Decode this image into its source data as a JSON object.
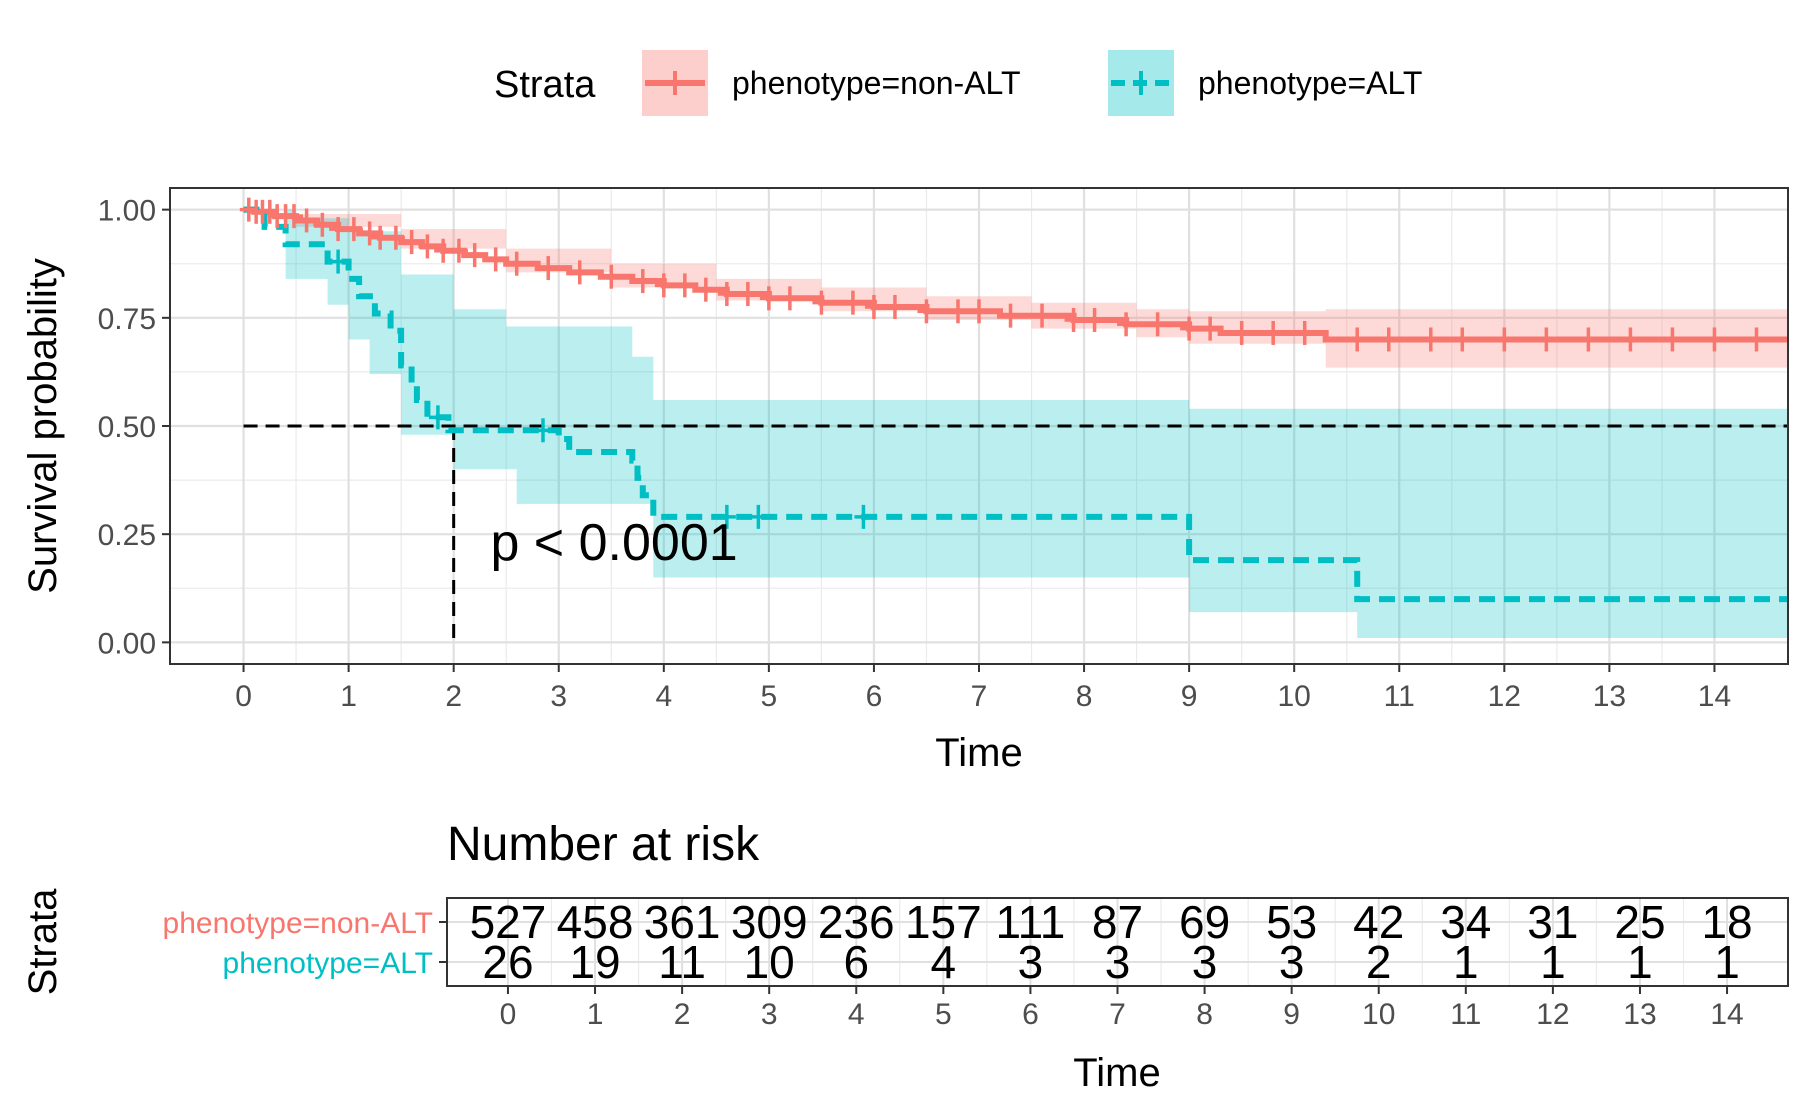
{
  "legend": {
    "title": "Strata",
    "items": [
      {
        "label": "phenotype=non-ALT",
        "color": "#F8766D",
        "fill": "#F8766D"
      },
      {
        "label": "phenotype=ALT",
        "color": "#00BFC4",
        "fill": "#00BFC4"
      }
    ]
  },
  "chart_data": [
    {
      "type": "line",
      "subtype": "kaplan-meier",
      "xlabel": "Time",
      "ylabel": "Survival probability",
      "xlim": [
        -0.7,
        14.7
      ],
      "ylim": [
        -0.05,
        1.05
      ],
      "x_ticks": [
        0,
        1,
        2,
        3,
        4,
        5,
        6,
        7,
        8,
        9,
        10,
        11,
        12,
        13,
        14
      ],
      "x_tick_labels": [
        "0",
        "1",
        "2",
        "3",
        "4",
        "5",
        "6",
        "7",
        "8",
        "9",
        "10",
        "11",
        "12",
        "13",
        "14"
      ],
      "y_ticks": [
        0,
        0.25,
        0.5,
        0.75,
        1.0
      ],
      "y_tick_labels": [
        "0.00",
        "0.25",
        "0.50",
        "0.75",
        "1.00"
      ],
      "grid": true,
      "annotation": "p < 0.0001",
      "annotation_position": [
        2.35,
        0.19
      ],
      "median_line": {
        "y": 0.5,
        "x_end": 14.7,
        "x_drop": 2.0
      },
      "series": [
        {
          "name": "phenotype=non-ALT",
          "color": "#F8766D",
          "linestyle": "solid",
          "steps": [
            [
              0,
              1.0
            ],
            [
              0.1,
              0.995
            ],
            [
              0.3,
              0.985
            ],
            [
              0.5,
              0.975
            ],
            [
              0.7,
              0.965
            ],
            [
              0.9,
              0.955
            ],
            [
              1.1,
              0.945
            ],
            [
              1.3,
              0.935
            ],
            [
              1.5,
              0.925
            ],
            [
              1.7,
              0.915
            ],
            [
              1.9,
              0.905
            ],
            [
              2.1,
              0.895
            ],
            [
              2.3,
              0.885
            ],
            [
              2.5,
              0.875
            ],
            [
              2.8,
              0.865
            ],
            [
              3.1,
              0.855
            ],
            [
              3.4,
              0.845
            ],
            [
              3.7,
              0.835
            ],
            [
              4.0,
              0.825
            ],
            [
              4.3,
              0.815
            ],
            [
              4.6,
              0.805
            ],
            [
              5.0,
              0.795
            ],
            [
              5.5,
              0.785
            ],
            [
              6.0,
              0.775
            ],
            [
              6.5,
              0.765
            ],
            [
              7.2,
              0.755
            ],
            [
              7.9,
              0.745
            ],
            [
              8.4,
              0.735
            ],
            [
              9.0,
              0.725
            ],
            [
              9.3,
              0.715
            ],
            [
              10.3,
              0.7
            ],
            [
              14.7,
              0.7
            ]
          ],
          "ci_upper": [
            [
              0,
              1.0
            ],
            [
              0.5,
              0.99
            ],
            [
              1.5,
              0.955
            ],
            [
              2.5,
              0.91
            ],
            [
              3.5,
              0.875
            ],
            [
              4.5,
              0.84
            ],
            [
              5.5,
              0.82
            ],
            [
              6.5,
              0.8
            ],
            [
              7.5,
              0.785
            ],
            [
              8.5,
              0.77
            ],
            [
              9.0,
              0.765
            ],
            [
              10.3,
              0.77
            ],
            [
              14.7,
              0.77
            ]
          ],
          "ci_lower": [
            [
              0,
              1.0
            ],
            [
              0.5,
              0.96
            ],
            [
              1.5,
              0.91
            ],
            [
              2.5,
              0.855
            ],
            [
              3.5,
              0.82
            ],
            [
              4.5,
              0.79
            ],
            [
              5.5,
              0.765
            ],
            [
              6.5,
              0.745
            ],
            [
              7.5,
              0.725
            ],
            [
              8.5,
              0.705
            ],
            [
              9.0,
              0.69
            ],
            [
              10.3,
              0.635
            ],
            [
              14.7,
              0.635
            ]
          ],
          "censor_times": [
            0.05,
            0.12,
            0.18,
            0.25,
            0.32,
            0.4,
            0.48,
            0.6,
            0.75,
            0.9,
            1.05,
            1.2,
            1.3,
            1.45,
            1.6,
            1.75,
            1.9,
            2.05,
            2.2,
            2.4,
            2.6,
            2.9,
            3.2,
            3.5,
            3.8,
            4.0,
            4.2,
            4.4,
            4.6,
            4.8,
            5.0,
            5.2,
            5.5,
            5.8,
            6.0,
            6.2,
            6.5,
            6.8,
            7.0,
            7.3,
            7.6,
            7.9,
            8.1,
            8.4,
            8.7,
            9.0,
            9.2,
            9.5,
            9.8,
            10.1,
            10.6,
            10.9,
            11.3,
            11.6,
            12.0,
            12.4,
            12.8,
            13.2,
            13.6,
            14.0,
            14.4
          ]
        },
        {
          "name": "phenotype=ALT",
          "color": "#00BFC4",
          "linestyle": "dashed",
          "steps": [
            [
              0,
              1.0
            ],
            [
              0.2,
              0.96
            ],
            [
              0.4,
              0.92
            ],
            [
              0.8,
              0.88
            ],
            [
              1.0,
              0.84
            ],
            [
              1.1,
              0.8
            ],
            [
              1.25,
              0.76
            ],
            [
              1.4,
              0.72
            ],
            [
              1.5,
              0.64
            ],
            [
              1.6,
              0.6
            ],
            [
              1.65,
              0.56
            ],
            [
              1.75,
              0.52
            ],
            [
              1.95,
              0.49
            ],
            [
              3.0,
              0.47
            ],
            [
              3.1,
              0.44
            ],
            [
              3.7,
              0.42
            ],
            [
              3.75,
              0.38
            ],
            [
              3.8,
              0.34
            ],
            [
              3.9,
              0.29
            ],
            [
              9.0,
              0.19
            ],
            [
              10.6,
              0.1
            ],
            [
              14.7,
              0.1
            ]
          ],
          "ci_upper": [
            [
              0,
              1.0
            ],
            [
              0.5,
              0.98
            ],
            [
              1.0,
              0.95
            ],
            [
              1.5,
              0.85
            ],
            [
              2.0,
              0.77
            ],
            [
              2.5,
              0.73
            ],
            [
              3.2,
              0.73
            ],
            [
              3.7,
              0.66
            ],
            [
              3.9,
              0.56
            ],
            [
              9.0,
              0.54
            ],
            [
              14.7,
              0.54
            ]
          ],
          "ci_lower": [
            [
              0,
              1.0
            ],
            [
              0.4,
              0.84
            ],
            [
              0.8,
              0.78
            ],
            [
              1.0,
              0.7
            ],
            [
              1.2,
              0.62
            ],
            [
              1.5,
              0.48
            ],
            [
              2.0,
              0.4
            ],
            [
              2.6,
              0.32
            ],
            [
              3.9,
              0.15
            ],
            [
              9.0,
              0.07
            ],
            [
              10.6,
              0.01
            ],
            [
              14.7,
              0.01
            ]
          ],
          "censor_times": [
            0.9,
            1.85,
            2.85,
            4.6,
            4.9,
            5.9
          ]
        }
      ]
    },
    {
      "type": "table",
      "title": "Number at risk",
      "ylabel": "Strata",
      "xlabel": "Time",
      "columns": [
        "0",
        "1",
        "2",
        "3",
        "4",
        "5",
        "6",
        "7",
        "8",
        "9",
        "10",
        "11",
        "12",
        "13",
        "14"
      ],
      "rows": [
        {
          "name": "phenotype=non-ALT",
          "color": "#F8766D",
          "values": [
            527,
            458,
            361,
            309,
            236,
            157,
            111,
            87,
            69,
            53,
            42,
            34,
            31,
            25,
            18
          ]
        },
        {
          "name": "phenotype=ALT",
          "color": "#00BFC4",
          "values": [
            26,
            19,
            11,
            10,
            6,
            4,
            3,
            3,
            3,
            3,
            2,
            1,
            1,
            1,
            1
          ]
        }
      ]
    }
  ]
}
